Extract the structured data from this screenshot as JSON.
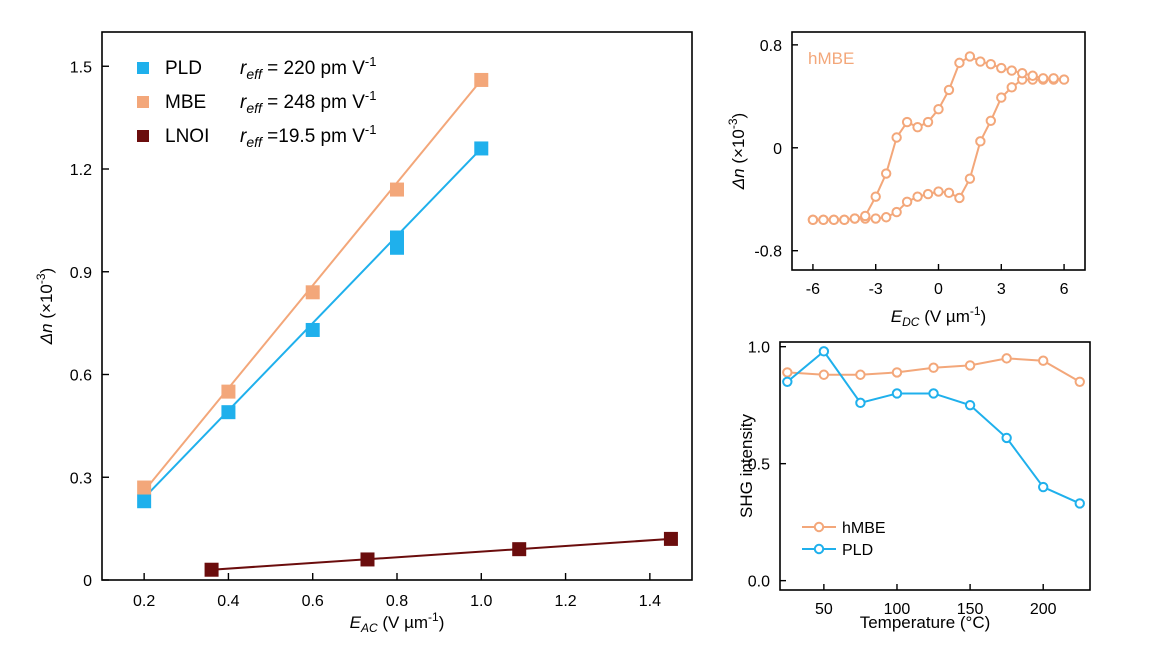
{
  "colors": {
    "pld": "#1fb0ec",
    "mbe": "#f3a77a",
    "lnoi": "#6b0d0d"
  },
  "chart_data": [
    {
      "type": "scatter",
      "xlabel_main": "E",
      "xlabel_sub": "AC",
      "xlabel_unit": " (V µm",
      "xlabel_sup": "-1",
      "xlabel_close": ")",
      "ylabel_main": "Δn",
      "ylabel_unit": " (×10",
      "ylabel_sup": "-3",
      "ylabel_close": ")",
      "xlim": [
        0.1,
        1.5
      ],
      "ylim": [
        0,
        1.6
      ],
      "xticks": [
        "0.2",
        "0.4",
        "0.6",
        "0.8",
        "1.0",
        "1.2",
        "1.4"
      ],
      "yticks": [
        "0",
        "0.3",
        "0.6",
        "0.9",
        "1.2",
        "1.5"
      ],
      "legend_placement": "top-left",
      "series": [
        {
          "key": "pld",
          "name": "PLD",
          "r_label": "r",
          "r_sub": "eff",
          "r_value": " = 220 pm V",
          "r_sup": "-1",
          "x": [
            0.2,
            0.4,
            0.6,
            0.8,
            0.8,
            1.0
          ],
          "y": [
            0.23,
            0.49,
            0.73,
            0.97,
            1.0,
            1.26
          ],
          "fit": [
            [
              0.2,
              0.24
            ],
            [
              1.0,
              1.26
            ]
          ]
        },
        {
          "key": "mbe",
          "name": "MBE",
          "r_label": "r",
          "r_sub": "eff",
          "r_value": " = 248 pm V",
          "r_sup": "-1",
          "x": [
            0.2,
            0.4,
            0.6,
            0.8,
            1.0
          ],
          "y": [
            0.27,
            0.55,
            0.84,
            1.14,
            1.46
          ],
          "fit": [
            [
              0.2,
              0.26
            ],
            [
              1.0,
              1.46
            ]
          ]
        },
        {
          "key": "lnoi",
          "name": "LNOI",
          "r_label": "r",
          "r_sub": "eff",
          "r_value": " =19.5 pm V",
          "r_sup": "-1",
          "x": [
            0.36,
            0.73,
            1.09,
            1.45
          ],
          "y": [
            0.03,
            0.06,
            0.09,
            0.12
          ],
          "fit": [
            [
              0.36,
              0.03
            ],
            [
              1.45,
              0.12
            ]
          ]
        }
      ]
    },
    {
      "type": "line",
      "annotation": "hMBE",
      "xlabel_main": "E",
      "xlabel_sub": "DC",
      "xlabel_unit": " (V µm",
      "xlabel_sup": "-1",
      "xlabel_close": ")",
      "ylabel_main": "Δn",
      "ylabel_unit": " (×10",
      "ylabel_sup": "-3",
      "ylabel_close": ")",
      "xlim": [
        -7,
        7
      ],
      "ylim": [
        -0.95,
        0.9
      ],
      "xticks": [
        "-6",
        "-3",
        "0",
        "3",
        "6"
      ],
      "yticks": [
        "-0.8",
        "0",
        "0.8"
      ],
      "series": [
        {
          "key": "mbe",
          "name": "hMBE",
          "x": [
            -6,
            -5.5,
            -5,
            -4.5,
            -4,
            -3.5,
            -3,
            -2.5,
            -2,
            -1.5,
            -1,
            -0.5,
            0,
            0.5,
            1,
            1.5,
            2,
            2.5,
            3,
            3.5,
            4,
            4.5,
            5,
            5.5,
            6,
            5.5,
            5,
            4.5,
            4,
            3.5,
            3,
            2.5,
            2,
            1.5,
            1,
            0.5,
            0,
            -0.5,
            -1,
            -1.5,
            -2,
            -2.5,
            -3,
            -3.5,
            -4,
            -4.5,
            -5,
            -5.5,
            -6
          ],
          "y": [
            -0.56,
            -0.56,
            -0.56,
            -0.56,
            -0.55,
            -0.55,
            -0.55,
            -0.54,
            -0.5,
            -0.42,
            -0.38,
            -0.36,
            -0.34,
            -0.35,
            -0.39,
            -0.24,
            0.05,
            0.21,
            0.39,
            0.47,
            0.53,
            0.53,
            0.53,
            0.53,
            0.53,
            0.54,
            0.54,
            0.56,
            0.58,
            0.6,
            0.62,
            0.65,
            0.67,
            0.71,
            0.66,
            0.45,
            0.3,
            0.2,
            0.16,
            0.2,
            0.08,
            -0.2,
            -0.38,
            -0.53,
            -0.55,
            -0.56,
            -0.56,
            -0.56,
            -0.56
          ]
        }
      ]
    },
    {
      "type": "line",
      "xlabel": "Temperature (°C)",
      "ylabel": "SHG intensity",
      "xlim": [
        20,
        232
      ],
      "ylim": [
        -0.04,
        1.02
      ],
      "xticks": [
        50,
        100,
        150,
        200
      ],
      "yticks": [
        "0.0",
        "0.5",
        "1.0"
      ],
      "legend_placement": "bottom-left",
      "series": [
        {
          "key": "mbe",
          "name": "hMBE",
          "x": [
            25,
            50,
            75,
            100,
            125,
            150,
            175,
            200,
            225
          ],
          "y": [
            0.89,
            0.88,
            0.88,
            0.89,
            0.91,
            0.92,
            0.95,
            0.94,
            0.85
          ]
        },
        {
          "key": "pld",
          "name": "PLD",
          "x": [
            25,
            50,
            75,
            100,
            125,
            150,
            175,
            200,
            225
          ],
          "y": [
            0.85,
            0.98,
            0.76,
            0.8,
            0.8,
            0.75,
            0.61,
            0.4,
            0.33
          ]
        }
      ]
    }
  ]
}
